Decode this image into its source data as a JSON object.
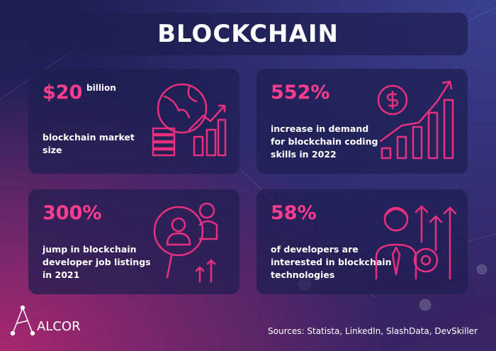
{
  "header": {
    "title": "BLOCKCHAIN"
  },
  "cards": [
    {
      "stat": "$20",
      "unit": "billion",
      "description": [
        "blockchain market",
        "size"
      ]
    },
    {
      "stat": "552%",
      "description": [
        "increase in demand",
        "for blockchain coding",
        "skills in 2022"
      ]
    },
    {
      "stat": "300%",
      "description": [
        "jump in blockchain",
        "developer job listings",
        "in 2021"
      ]
    },
    {
      "stat": "58%",
      "description": [
        "of developers are",
        "interested in blockchain",
        "technologies"
      ]
    }
  ],
  "footer": {
    "logo": "ALCOR",
    "sources": "Sources: Statista, LinkedIn, SlashData, DevSkiller"
  }
}
